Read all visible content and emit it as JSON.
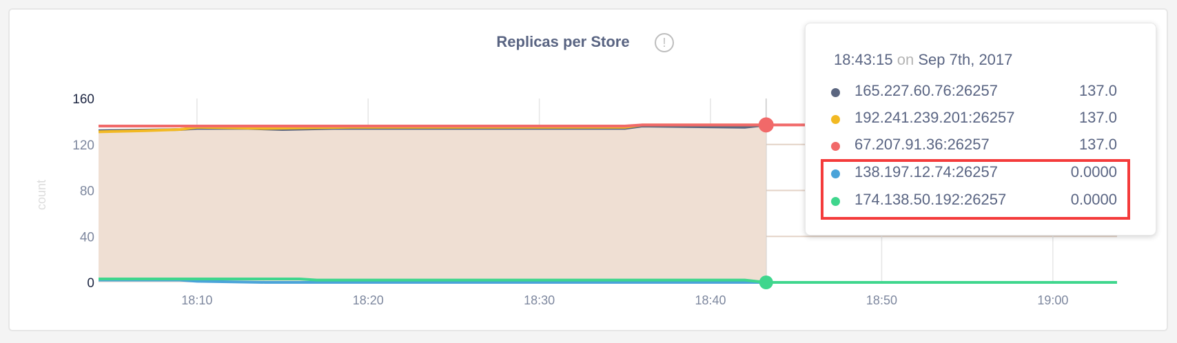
{
  "chart_data": {
    "type": "line",
    "title": "Replicas per Store",
    "ylabel": "count",
    "xlabel": "",
    "ylim": [
      0,
      160
    ],
    "xlim": [
      "18:04:15",
      "19:03:45"
    ],
    "y_ticks": [
      "0",
      "40",
      "80",
      "120",
      "160"
    ],
    "x_ticks": [
      "18:10",
      "18:20",
      "18:30",
      "18:40",
      "18:50",
      "19:00"
    ],
    "grid": true,
    "series": [
      {
        "name": "165.227.60.76:26257",
        "color": "#5b6680",
        "x": [
          "18:04:15",
          "18:07",
          "18:09",
          "18:10",
          "18:13",
          "18:15",
          "18:18",
          "18:35",
          "18:36",
          "18:42",
          "18:43:15"
        ],
        "y": [
          132,
          132.5,
          133,
          134,
          134,
          133,
          134,
          134,
          136,
          135,
          137
        ]
      },
      {
        "name": "192.241.239.201:26257",
        "color": "#f2b923",
        "x": [
          "18:04:15",
          "18:07",
          "18:09",
          "18:10",
          "18:14",
          "18:19",
          "18:35",
          "18:36",
          "18:43:15"
        ],
        "y": [
          131,
          132,
          133,
          135,
          134,
          135,
          135,
          137,
          137
        ]
      },
      {
        "name": "67.207.91.36:26257",
        "color": "#f16969",
        "x": [
          "18:04:15",
          "18:35",
          "18:36",
          "19:03:45"
        ],
        "y": [
          136,
          136,
          137,
          137
        ]
      },
      {
        "name": "138.197.12.74:26257",
        "color": "#4aa3d9",
        "x": [
          "18:04:15",
          "18:09",
          "18:10",
          "18:14",
          "19:03:45"
        ],
        "y": [
          2,
          2,
          1,
          0,
          0
        ]
      },
      {
        "name": "174.138.50.192:26257",
        "color": "#3fd68d",
        "x": [
          "18:04:15",
          "18:16",
          "18:17",
          "18:42",
          "18:43:15",
          "19:03:45"
        ],
        "y": [
          3,
          3,
          2,
          2,
          0,
          0
        ]
      }
    ],
    "fill_color": "#efdfd3",
    "hover_x": "18:43:15"
  },
  "tooltip": {
    "time": "18:43:15",
    "on": "on",
    "date": "Sep 7th, 2017",
    "rows": [
      {
        "label": "165.227.60.76:26257",
        "value": "137.0",
        "color": "#5b6680"
      },
      {
        "label": "192.241.239.201:26257",
        "value": "137.0",
        "color": "#f2b923"
      },
      {
        "label": "67.207.91.36:26257",
        "value": "137.0",
        "color": "#f16969"
      },
      {
        "label": "138.197.12.74:26257",
        "value": "0.0000",
        "color": "#4aa3d9"
      },
      {
        "label": "174.138.50.192:26257",
        "value": "0.0000",
        "color": "#3fd68d"
      }
    ],
    "highlight_color": "#f43b3b"
  },
  "info_icon": "!"
}
